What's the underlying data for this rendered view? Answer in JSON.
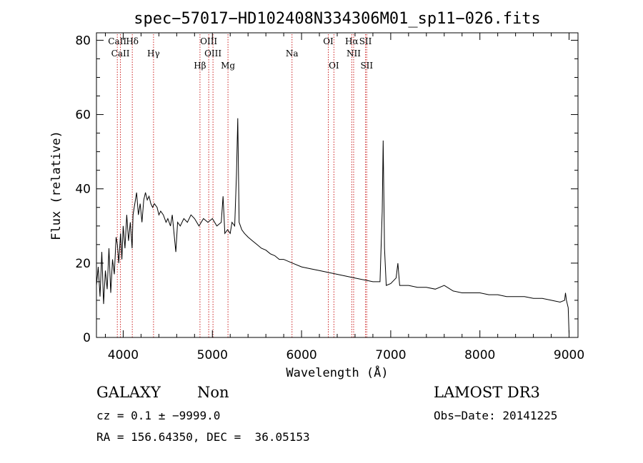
{
  "chart_data": {
    "type": "line",
    "title": "spec−57017−HD102408N334306M01_sp11−026.fits",
    "xlabel": "Wavelength (Å)",
    "ylabel": "Flux (relative)",
    "xlim": [
      3700,
      9100
    ],
    "ylim": [
      0,
      82
    ],
    "x_ticks": [
      4000,
      5000,
      6000,
      7000,
      8000,
      9000
    ],
    "x_tick_labels": [
      "4000",
      "5000",
      "6000",
      "7000",
      "8000",
      "9000"
    ],
    "y_ticks": [
      0,
      20,
      40,
      60,
      80
    ],
    "y_tick_labels": [
      "0",
      "20",
      "40",
      "60",
      "80"
    ],
    "grid": false,
    "series": [
      {
        "name": "spectrum",
        "points": [
          [
            3700,
            14
          ],
          [
            3720,
            19
          ],
          [
            3740,
            11
          ],
          [
            3760,
            23
          ],
          [
            3780,
            9
          ],
          [
            3800,
            18
          ],
          [
            3820,
            13
          ],
          [
            3840,
            24
          ],
          [
            3860,
            12
          ],
          [
            3880,
            21
          ],
          [
            3900,
            17
          ],
          [
            3920,
            27
          ],
          [
            3935,
            25
          ],
          [
            3950,
            20
          ],
          [
            3970,
            28
          ],
          [
            3985,
            21
          ],
          [
            4000,
            30
          ],
          [
            4020,
            24
          ],
          [
            4040,
            33
          ],
          [
            4060,
            26
          ],
          [
            4080,
            31
          ],
          [
            4100,
            24
          ],
          [
            4110,
            33
          ],
          [
            4130,
            36
          ],
          [
            4150,
            39
          ],
          [
            4170,
            33
          ],
          [
            4190,
            36
          ],
          [
            4210,
            31
          ],
          [
            4230,
            37
          ],
          [
            4250,
            39
          ],
          [
            4270,
            37
          ],
          [
            4290,
            38
          ],
          [
            4310,
            36
          ],
          [
            4330,
            35
          ],
          [
            4350,
            36
          ],
          [
            4380,
            35
          ],
          [
            4400,
            33
          ],
          [
            4420,
            34
          ],
          [
            4450,
            33
          ],
          [
            4480,
            31
          ],
          [
            4500,
            32
          ],
          [
            4530,
            30
          ],
          [
            4550,
            33
          ],
          [
            4570,
            28
          ],
          [
            4590,
            23
          ],
          [
            4610,
            31
          ],
          [
            4640,
            30
          ],
          [
            4680,
            32
          ],
          [
            4720,
            31
          ],
          [
            4760,
            33
          ],
          [
            4800,
            32
          ],
          [
            4850,
            30
          ],
          [
            4900,
            32
          ],
          [
            4950,
            31
          ],
          [
            5000,
            32
          ],
          [
            5050,
            30
          ],
          [
            5100,
            31
          ],
          [
            5120,
            38
          ],
          [
            5140,
            28
          ],
          [
            5170,
            29
          ],
          [
            5200,
            28
          ],
          [
            5220,
            31
          ],
          [
            5250,
            30
          ],
          [
            5270,
            44
          ],
          [
            5285,
            59
          ],
          [
            5300,
            31
          ],
          [
            5330,
            29
          ],
          [
            5360,
            28
          ],
          [
            5400,
            27
          ],
          [
            5450,
            26
          ],
          [
            5500,
            25
          ],
          [
            5550,
            24
          ],
          [
            5600,
            23.5
          ],
          [
            5650,
            22.5
          ],
          [
            5700,
            22
          ],
          [
            5750,
            21
          ],
          [
            5800,
            21
          ],
          [
            5900,
            20
          ],
          [
            6000,
            19
          ],
          [
            6100,
            18.5
          ],
          [
            6200,
            18
          ],
          [
            6300,
            17.5
          ],
          [
            6400,
            17
          ],
          [
            6500,
            16.5
          ],
          [
            6600,
            16
          ],
          [
            6700,
            15.5
          ],
          [
            6800,
            15
          ],
          [
            6880,
            15
          ],
          [
            6905,
            34
          ],
          [
            6915,
            53
          ],
          [
            6930,
            24
          ],
          [
            6950,
            14
          ],
          [
            7000,
            14.5
          ],
          [
            7060,
            16
          ],
          [
            7080,
            20
          ],
          [
            7100,
            14
          ],
          [
            7200,
            14
          ],
          [
            7300,
            13.5
          ],
          [
            7400,
            13.5
          ],
          [
            7500,
            13
          ],
          [
            7600,
            14
          ],
          [
            7700,
            12.5
          ],
          [
            7800,
            12
          ],
          [
            7900,
            12
          ],
          [
            8000,
            12
          ],
          [
            8100,
            11.5
          ],
          [
            8200,
            11.5
          ],
          [
            8300,
            11
          ],
          [
            8400,
            11
          ],
          [
            8500,
            11
          ],
          [
            8600,
            10.5
          ],
          [
            8700,
            10.5
          ],
          [
            8800,
            10
          ],
          [
            8900,
            9.5
          ],
          [
            8950,
            10
          ],
          [
            8960,
            12
          ],
          [
            8970,
            10
          ],
          [
            8990,
            8
          ],
          [
            9000,
            1
          ]
        ]
      }
    ],
    "lines": [
      {
        "x": 3934,
        "label": "CaII",
        "row": 0
      },
      {
        "x": 3969,
        "label": "CaII",
        "row": 1
      },
      {
        "x": 4102,
        "label": "Hδ",
        "row": 0
      },
      {
        "x": 4340,
        "label": "Hγ",
        "row": 1
      },
      {
        "x": 4861,
        "label": "Hβ",
        "row": 2
      },
      {
        "x": 4959,
        "label": "OIII",
        "row": 0
      },
      {
        "x": 5007,
        "label": "OIII",
        "row": 1
      },
      {
        "x": 5175,
        "label": "Mg",
        "row": 2
      },
      {
        "x": 5893,
        "label": "Na",
        "row": 1
      },
      {
        "x": 6300,
        "label": "OI",
        "row": 0
      },
      {
        "x": 6363,
        "label": "OI",
        "row": 2
      },
      {
        "x": 6563,
        "label": "Hα",
        "row": 0
      },
      {
        "x": 6584,
        "label": "NII",
        "row": 1
      },
      {
        "x": 6717,
        "label": "SII",
        "row": 0
      },
      {
        "x": 6731,
        "label": "SII",
        "row": 2
      }
    ]
  },
  "info": {
    "object_class": "GALAXY",
    "subclass": "Non",
    "survey": "LAMOST DR3",
    "cz": "cz = 0.1 ± −9999.0",
    "obs_date": "Obs−Date: 20141225",
    "radec": "RA = 156.64350, DEC =  36.05153"
  }
}
